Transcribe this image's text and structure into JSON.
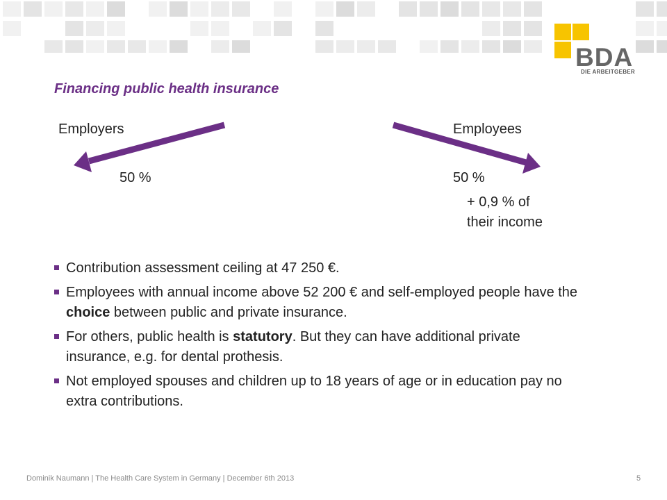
{
  "logo": {
    "text": "BDA",
    "subtitle": "DIE ARBEITGEBER"
  },
  "title": "Financing public health insurance",
  "diagram": {
    "employers_label": "Employers",
    "employees_label": "Employees",
    "employers_share": "50 %",
    "employees_share": "50 %",
    "employees_extra_line1": "+ 0,9 % of",
    "employees_extra_line2": "their income"
  },
  "bullets": [
    [
      {
        "t": "Contribution assessment ceiling at 47 250 €."
      }
    ],
    [
      {
        "t": "Employees with annual income above 52 200 € and self-employed people have the "
      },
      {
        "t": "choice",
        "b": true
      },
      {
        "t": " between public and private insurance."
      }
    ],
    [
      {
        "t": "For others, public health is "
      },
      {
        "t": "statutory",
        "b": true
      },
      {
        "t": ". But they can have additional private insurance, e.g. for dental prothesis."
      }
    ],
    [
      {
        "t": "Not employed spouses and children up to 18 years of age or in education pay no extra contributions."
      }
    ]
  ],
  "footer": {
    "text": "Dominik Naumann | The Health Care System in Germany | December 6th 2013",
    "page": "5"
  },
  "colors": {
    "accent": "#6b2f86",
    "logo_yellow": "#f7c400",
    "deco_squares": "#e2e2e2"
  }
}
